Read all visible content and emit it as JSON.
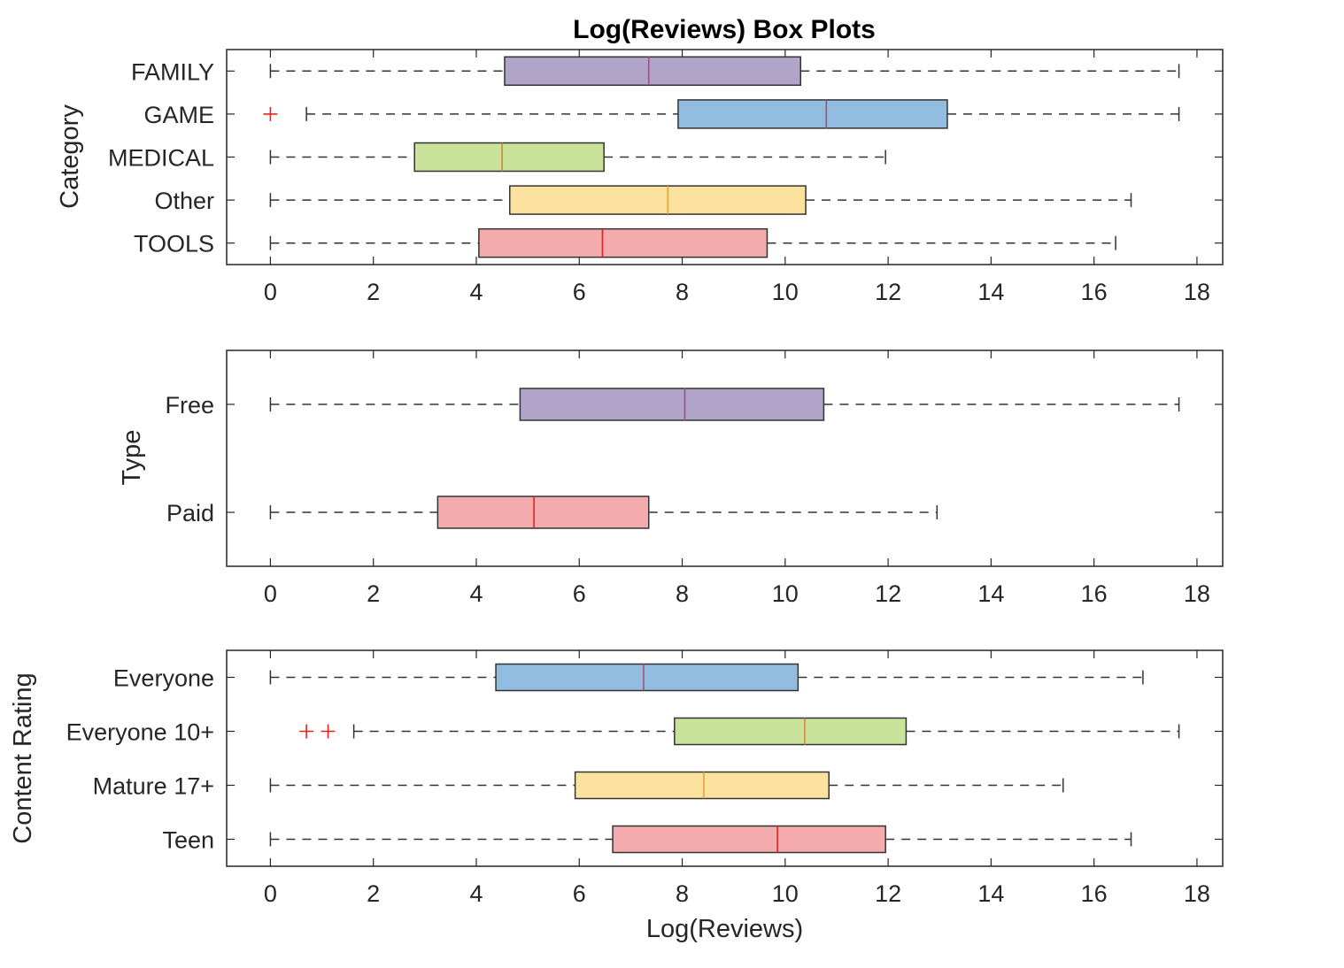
{
  "figure": {
    "title": "Log(Reviews) Box Plots",
    "outlier_color": "#e8221e"
  },
  "chart_data": [
    {
      "type": "boxplot",
      "orientation": "horizontal",
      "ylabel": "Category",
      "xlabel": "",
      "xlim": [
        -0.85,
        18.5
      ],
      "xticks": [
        0,
        2,
        4,
        6,
        8,
        10,
        12,
        14,
        16,
        18
      ],
      "grid": false,
      "groups": [
        {
          "label": "FAMILY",
          "whisker_low": 0,
          "q1": 4.55,
          "median": 7.35,
          "q3": 10.3,
          "whisker_high": 17.65,
          "outliers": [],
          "fill": "#b0a4c8",
          "median_color": "#a0527c"
        },
        {
          "label": "GAME",
          "whisker_low": 0.7,
          "q1": 7.92,
          "median": 10.8,
          "q3": 13.15,
          "whisker_high": 17.65,
          "outliers": [
            0
          ],
          "fill": "#92bde0",
          "median_color": "#a0527c"
        },
        {
          "label": "MEDICAL",
          "whisker_low": 0,
          "q1": 2.8,
          "median": 4.5,
          "q3": 6.48,
          "whisker_high": 11.95,
          "outliers": [],
          "fill": "#c9e39b",
          "median_color": "#d8843a"
        },
        {
          "label": "Other",
          "whisker_low": 0,
          "q1": 4.65,
          "median": 7.72,
          "q3": 10.4,
          "whisker_high": 16.72,
          "outliers": [],
          "fill": "#fde19f",
          "median_color": "#e8a23a"
        },
        {
          "label": "TOOLS",
          "whisker_low": 0,
          "q1": 4.05,
          "median": 6.45,
          "q3": 9.65,
          "whisker_high": 16.42,
          "outliers": [],
          "fill": "#f3abae",
          "median_color": "#e8221e"
        }
      ]
    },
    {
      "type": "boxplot",
      "orientation": "horizontal",
      "ylabel": "Type",
      "xlabel": "",
      "xlim": [
        -0.85,
        18.5
      ],
      "xticks": [
        0,
        2,
        4,
        6,
        8,
        10,
        12,
        14,
        16,
        18
      ],
      "grid": false,
      "groups": [
        {
          "label": "Free",
          "whisker_low": 0,
          "q1": 4.85,
          "median": 8.05,
          "q3": 10.75,
          "whisker_high": 17.65,
          "outliers": [],
          "fill": "#b0a4c8",
          "median_color": "#a0527c"
        },
        {
          "label": "Paid",
          "whisker_low": 0,
          "q1": 3.25,
          "median": 5.12,
          "q3": 7.35,
          "whisker_high": 12.95,
          "outliers": [],
          "fill": "#f3abae",
          "median_color": "#e8221e"
        }
      ]
    },
    {
      "type": "boxplot",
      "orientation": "horizontal",
      "ylabel": "Content Rating",
      "xlabel": "Log(Reviews)",
      "xlim": [
        -0.85,
        18.5
      ],
      "xticks": [
        0,
        2,
        4,
        6,
        8,
        10,
        12,
        14,
        16,
        18
      ],
      "grid": false,
      "groups": [
        {
          "label": "Everyone",
          "whisker_low": 0,
          "q1": 4.38,
          "median": 7.25,
          "q3": 10.25,
          "whisker_high": 16.95,
          "outliers": [],
          "fill": "#92bde0",
          "median_color": "#a0527c"
        },
        {
          "label": "Everyone 10+",
          "whisker_low": 1.62,
          "q1": 7.85,
          "median": 10.38,
          "q3": 12.35,
          "whisker_high": 17.65,
          "outliers": [
            0.7,
            1.12
          ],
          "fill": "#c9e39b",
          "median_color": "#d8843a"
        },
        {
          "label": "Mature 17+",
          "whisker_low": 0,
          "q1": 5.92,
          "median": 8.42,
          "q3": 10.85,
          "whisker_high": 15.4,
          "outliers": [],
          "fill": "#fde19f",
          "median_color": "#e8a23a"
        },
        {
          "label": "Teen",
          "whisker_low": 0,
          "q1": 6.65,
          "median": 9.85,
          "q3": 11.95,
          "whisker_high": 16.72,
          "outliers": [],
          "fill": "#f3abae",
          "median_color": "#e8221e"
        }
      ]
    }
  ]
}
